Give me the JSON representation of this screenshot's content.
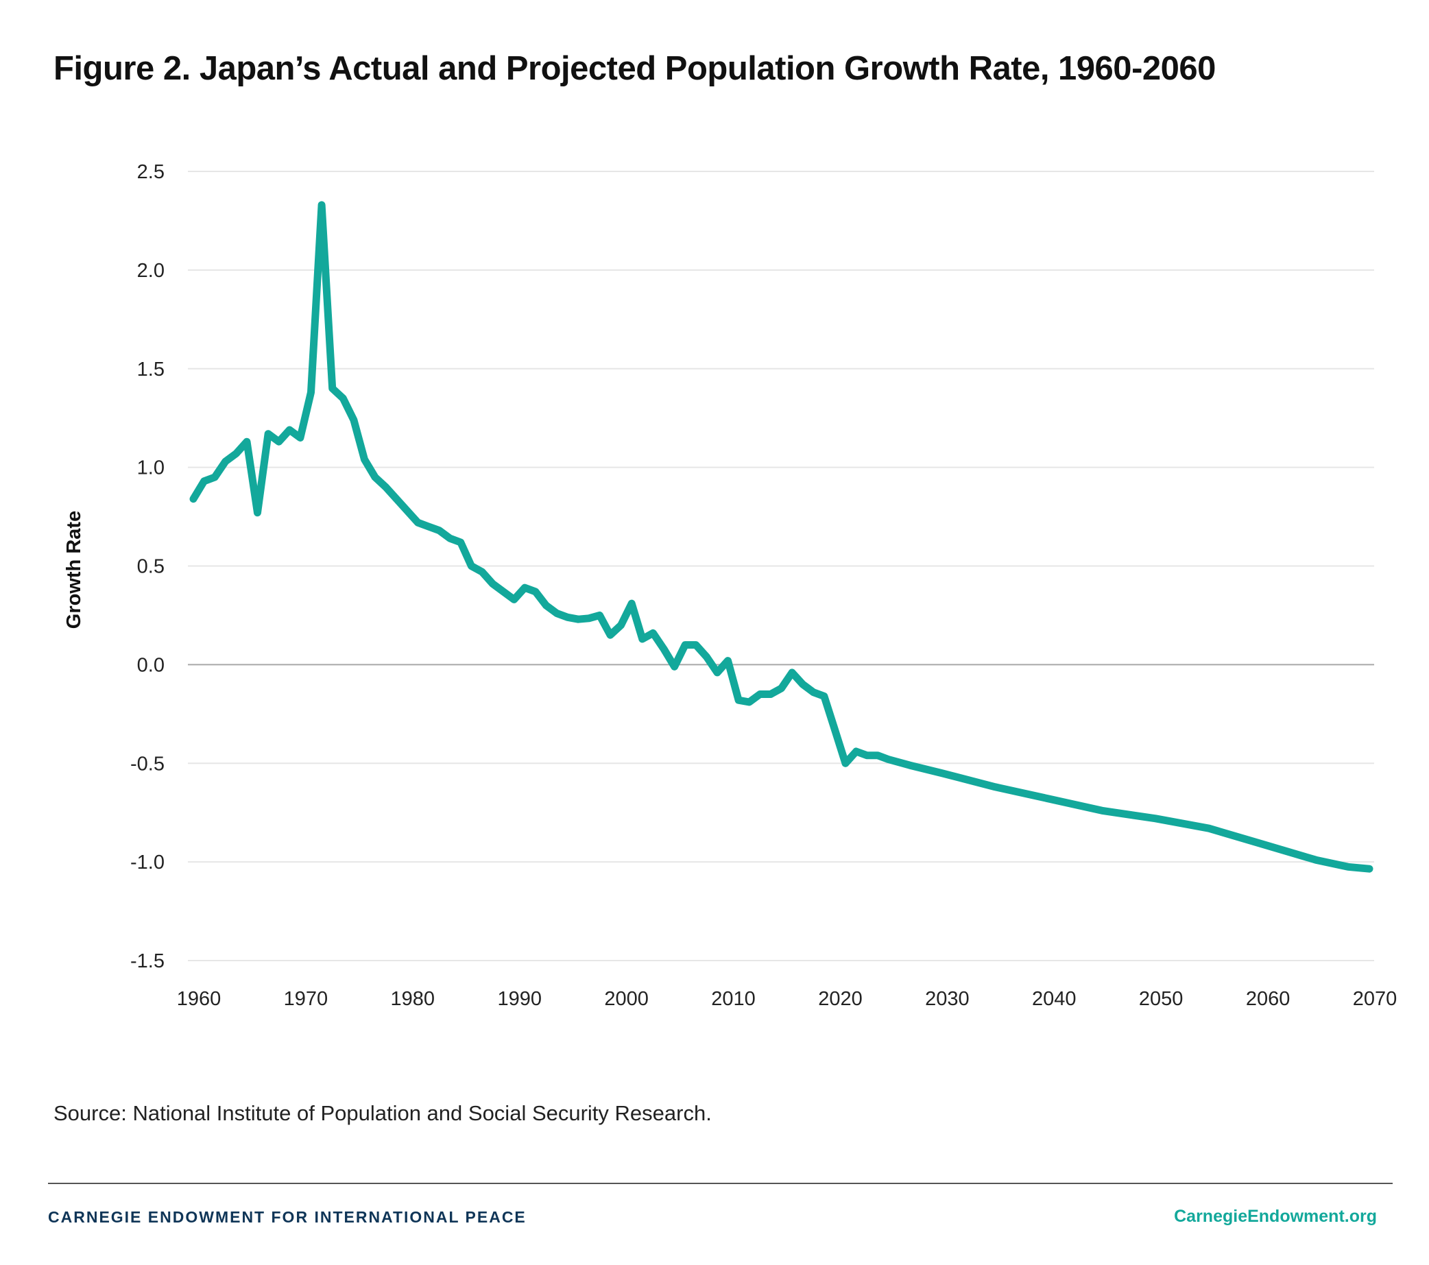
{
  "title": "Figure 2. Japan’s Actual and Projected Population Growth Rate, 1960-2060",
  "source": "Source: National Institute of Population and Social Security Research.",
  "footer": {
    "organization": "CARNEGIE ENDOWMENT FOR INTERNATIONAL PEACE",
    "website": "CarnegieEndowment.org"
  },
  "colors": {
    "line": "#13a89b",
    "grid": "#e6e6e6",
    "zero_line": "#a8a8a8",
    "footer_org": "#0f3557"
  },
  "chart_data": {
    "type": "line",
    "title": "Figure 2. Japan’s Actual and Projected Population Growth Rate, 1960-2060",
    "xlabel": "",
    "ylabel": "Growth Rate",
    "xlim": [
      1960,
      2070
    ],
    "ylim": [
      -1.5,
      2.5
    ],
    "grid": true,
    "legend": "none",
    "x_ticks": [
      "1960",
      "1970",
      "1980",
      "1990",
      "2000",
      "2010",
      "2020",
      "2030",
      "2040",
      "2050",
      "2060",
      "2070"
    ],
    "y_ticks": [
      "2.5",
      "2.0",
      "1.5",
      "1.0",
      "0.5",
      "0.0",
      "-0.5",
      "-1.0",
      "-1.5"
    ],
    "series": [
      {
        "x": [
          1960,
          1961,
          1962,
          1963,
          1964,
          1965,
          1966,
          1967,
          1968,
          1969,
          1970,
          1971,
          1972,
          1973,
          1974,
          1975,
          1976,
          1977,
          1978,
          1979,
          1980,
          1981,
          1982,
          1983,
          1984,
          1985,
          1986,
          1987,
          1988,
          1989,
          1990,
          1991,
          1992,
          1993,
          1994,
          1995,
          1996,
          1997,
          1998,
          1999,
          2000,
          2001,
          2002,
          2003,
          2004,
          2005,
          2006,
          2007,
          2008,
          2009,
          2010,
          2011,
          2012,
          2013,
          2014,
          2015,
          2016,
          2017,
          2018,
          2019,
          2020,
          2021,
          2022,
          2023,
          2024,
          2025,
          2027,
          2030,
          2035,
          2040,
          2045,
          2050,
          2055,
          2060,
          2065,
          2068,
          2070
        ],
        "y": [
          0.84,
          0.93,
          0.95,
          1.03,
          1.07,
          1.13,
          0.77,
          1.17,
          1.13,
          1.19,
          1.15,
          1.38,
          2.33,
          1.4,
          1.35,
          1.24,
          1.04,
          0.95,
          0.9,
          0.84,
          0.78,
          0.72,
          0.7,
          0.68,
          0.64,
          0.62,
          0.5,
          0.47,
          0.41,
          0.37,
          0.33,
          0.39,
          0.37,
          0.3,
          0.26,
          0.24,
          0.23,
          0.235,
          0.25,
          0.15,
          0.2,
          0.31,
          0.13,
          0.16,
          0.08,
          -0.01,
          0.1,
          0.1,
          0.04,
          -0.04,
          0.02,
          -0.18,
          -0.19,
          -0.15,
          -0.15,
          -0.12,
          -0.04,
          -0.1,
          -0.14,
          -0.16,
          -0.33,
          -0.5,
          -0.44,
          -0.46,
          -0.46,
          -0.48,
          -0.51,
          -0.55,
          -0.62,
          -0.68,
          -0.74,
          -0.78,
          -0.83,
          -0.91,
          -0.99,
          -1.025,
          -1.035
        ]
      }
    ]
  }
}
